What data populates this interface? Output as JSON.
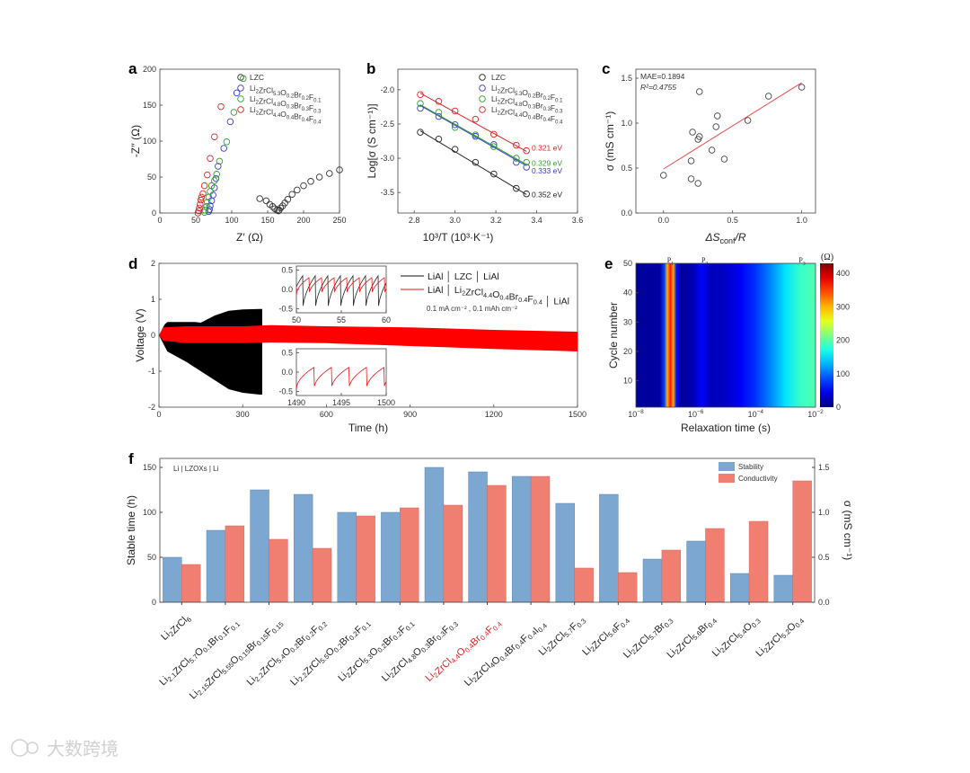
{
  "panels": {
    "a": "a",
    "b": "b",
    "c": "c",
    "d": "d",
    "e": "e",
    "f": "f"
  },
  "watermark": "大数跨境",
  "chart_data": [
    {
      "id": "a",
      "type": "scatter",
      "xlabel": "Z′ (Ω)",
      "ylabel": "-Z′′ (Ω)",
      "xlim": [
        0,
        250
      ],
      "ylim": [
        0,
        200
      ],
      "xticks": [
        0,
        50,
        100,
        150,
        200,
        250
      ],
      "yticks": [
        0,
        50,
        100,
        150,
        200
      ],
      "series": [
        {
          "name": "LZC",
          "color": "#333333",
          "points": [
            [
              139,
              20
            ],
            [
              148,
              17
            ],
            [
              153,
              12
            ],
            [
              157,
              9
            ],
            [
              160,
              6
            ],
            [
              163,
              4
            ],
            [
              165,
              3
            ],
            [
              166,
              4
            ],
            [
              168,
              7
            ],
            [
              171,
              10
            ],
            [
              174,
              14
            ],
            [
              178,
              19
            ],
            [
              184,
              26
            ],
            [
              191,
              32
            ],
            [
              200,
              38
            ],
            [
              210,
              44
            ],
            [
              222,
              50
            ],
            [
              236,
              55
            ],
            [
              250,
              60
            ]
          ]
        },
        {
          "name": "Li2ZrCl5.3O0.2Br0.2F0.1",
          "color": "#3a3ad8",
          "points": [
            [
              68,
              2
            ],
            [
              69,
              5
            ],
            [
              70,
              10
            ],
            [
              72,
              17
            ],
            [
              74,
              25
            ],
            [
              76,
              35
            ],
            [
              78,
              48
            ],
            [
              81,
              65
            ],
            [
              89,
              90
            ],
            [
              98,
              127
            ],
            [
              107,
              167
            ]
          ]
        },
        {
          "name": "Li2ZrCl4.8O0.3Br0.3F0.3",
          "color": "#2e9e2e",
          "points": [
            [
              62,
              1
            ],
            [
              63,
              4
            ],
            [
              65,
              9
            ],
            [
              66,
              15
            ],
            [
              68,
              22
            ],
            [
              70,
              30
            ],
            [
              72,
              38
            ],
            [
              76,
              45
            ],
            [
              79,
              54
            ],
            [
              83,
              72
            ],
            [
              93,
              99
            ],
            [
              103,
              140
            ],
            [
              116,
              187
            ]
          ]
        },
        {
          "name": "Li2ZrCl4.4O0.4Br0.4F0.4",
          "color": "#e02020",
          "points": [
            [
              53,
              0
            ],
            [
              54,
              3
            ],
            [
              55,
              7
            ],
            [
              56,
              12
            ],
            [
              57,
              18
            ],
            [
              58,
              22
            ],
            [
              60,
              27
            ],
            [
              62,
              38
            ],
            [
              66,
              53
            ],
            [
              70,
              76
            ],
            [
              76,
              106
            ],
            [
              85,
              148
            ]
          ]
        }
      ]
    },
    {
      "id": "b",
      "type": "scatter",
      "xlabel": "10³/T (10³·K⁻¹)",
      "ylabel": "Log[σ (S cm⁻¹)]",
      "xlim": [
        2.72,
        3.6
      ],
      "ylim": [
        -3.8,
        -1.7
      ],
      "xticks": [
        2.8,
        3.0,
        3.2,
        3.4,
        3.6
      ],
      "yticks": [
        -3.5,
        -3.0,
        -2.5,
        -2.0
      ],
      "x": [
        2.83,
        2.92,
        3.0,
        3.1,
        3.19,
        3.3,
        3.35
      ],
      "series": [
        {
          "name": "LZC",
          "color": "#222222",
          "values": [
            -2.62,
            -2.72,
            -2.87,
            -3.06,
            -3.23,
            -3.44,
            -3.52
          ],
          "fit": [
            -2.6,
            -3.53
          ],
          "annotation": "0.352 eV"
        },
        {
          "name": "Li2ZrCl5.3O0.2Br0.2F0.1",
          "color": "#3a3ad8",
          "values": [
            -2.27,
            -2.39,
            -2.51,
            -2.68,
            -2.8,
            -3.06,
            -3.13
          ],
          "fit": [
            -2.23,
            -3.11
          ],
          "annotation": "0.333 eV"
        },
        {
          "name": "Li2ZrCl4.8O0.3Br0.3F0.3",
          "color": "#2e9e2e",
          "values": [
            -2.2,
            -2.33,
            -2.55,
            -2.66,
            -2.83,
            -3.0,
            -3.06
          ],
          "fit": [
            -2.22,
            -3.09
          ],
          "annotation": "0.329 eV"
        },
        {
          "name": "Li2ZrCl4.4O0.4Br0.4F0.4",
          "color": "#e02020",
          "values": [
            -2.07,
            -2.17,
            -2.31,
            -2.43,
            -2.65,
            -2.81,
            -2.89
          ],
          "fit": [
            -2.05,
            -2.9
          ],
          "annotation": "0.321 eV"
        }
      ]
    },
    {
      "id": "c",
      "type": "scatter",
      "xlabel_parts": [
        "ΔS",
        "conf",
        "/R"
      ],
      "ylabel": "σ (mS cm⁻¹)",
      "xlim": [
        -0.2,
        1.1
      ],
      "ylim": [
        0,
        1.6
      ],
      "xticks": [
        0.0,
        0.5,
        1.0
      ],
      "yticks": [
        0.0,
        0.5,
        1.0,
        1.5
      ],
      "mae": "MAE=0.1894",
      "r2": "R²=0.4755",
      "points": [
        [
          0,
          0.42
        ],
        [
          0.2,
          0.38
        ],
        [
          0.25,
          0.33
        ],
        [
          0.2,
          0.58
        ],
        [
          0.21,
          0.9
        ],
        [
          0.26,
          0.85
        ],
        [
          0.25,
          0.82
        ],
        [
          0.26,
          1.35
        ],
        [
          0.35,
          0.7
        ],
        [
          0.38,
          0.96
        ],
        [
          0.39,
          1.08
        ],
        [
          0.44,
          0.6
        ],
        [
          0.61,
          1.03
        ],
        [
          0.76,
          1.3
        ],
        [
          1.0,
          1.4
        ]
      ],
      "fit": [
        [
          0,
          0.49
        ],
        [
          1.0,
          1.45
        ]
      ],
      "fit_color": "#e85050"
    },
    {
      "id": "d",
      "type": "area",
      "xlabel": "Time (h)",
      "ylabel": "Voltage (V)",
      "xlim": [
        0,
        1500
      ],
      "ylim": [
        -2,
        2
      ],
      "xticks": [
        0,
        300,
        600,
        900,
        1200,
        1500
      ],
      "yticks": [
        -2,
        -1,
        0,
        1,
        2
      ],
      "legend": [
        {
          "prefix": "LiAl │ ",
          "formula": "LZC",
          "suffix": " │ LiAl",
          "color": "#111111"
        },
        {
          "prefix": "LiAl │ ",
          "formula": "Li2ZrCl4.4O0.4Br0.4F0.4",
          "suffix": " │ LiAl",
          "color": "#ee1111"
        }
      ],
      "condition": "0.1 mA cm⁻² , 0.1 mAh cm⁻²",
      "black_envelope": {
        "t": [
          0,
          20,
          30,
          100,
          130,
          150,
          200,
          250,
          300,
          360,
          370
        ],
        "upper": [
          0,
          0.3,
          0.37,
          0.37,
          0.37,
          0.35,
          0.55,
          0.68,
          0.72,
          0.73,
          0.73
        ],
        "lower": [
          0,
          -0.3,
          -0.45,
          -0.75,
          -0.9,
          -1.0,
          -1.25,
          -1.5,
          -1.6,
          -1.65,
          -1.65
        ]
      },
      "red_envelope": {
        "t": [
          0,
          15,
          100,
          300,
          400,
          600,
          900,
          1200,
          1500
        ],
        "upper": [
          0,
          0.22,
          0.25,
          0.25,
          0.28,
          0.25,
          0.22,
          0.15,
          0.1
        ],
        "lower": [
          0,
          -0.15,
          -0.22,
          -0.22,
          -0.2,
          -0.22,
          -0.3,
          -0.38,
          -0.45
        ]
      },
      "insets": [
        {
          "xlim": [
            50,
            60
          ],
          "ylim": [
            -0.6,
            0.6
          ],
          "xticks": [
            50,
            55,
            60
          ],
          "yticks": [
            -0.5,
            0.0,
            0.5
          ],
          "series": [
            {
              "color": "#222222",
              "period": 1.4,
              "phase": 0.7,
              "high": 0.35,
              "low": -0.6
            },
            {
              "color": "#ee1111",
              "period": 1.4,
              "phase": 0,
              "high": 0.3,
              "low": -0.15
            }
          ]
        },
        {
          "xlim": [
            1490,
            1500
          ],
          "ylim": [
            -0.6,
            0.6
          ],
          "xticks": [
            1490,
            1495,
            1500
          ],
          "yticks": [
            -0.5,
            0.0,
            0.5
          ],
          "series": [
            {
              "color": "#ee1111",
              "period": 1.95,
              "phase": 0,
              "high": 0.12,
              "low": -0.45
            }
          ]
        }
      ]
    },
    {
      "id": "e",
      "type": "heatmap",
      "xlabel": "Relaxation time (s)",
      "ylabel": "Cycle number",
      "xlim_log10": [
        -8,
        -2
      ],
      "ylim": [
        1,
        50
      ],
      "xticks_log10": [
        -8,
        -6,
        -4,
        -2
      ],
      "yticks": [
        10,
        20,
        30,
        40,
        50
      ],
      "peaks": [
        {
          "label": "P1",
          "log10": -6.85
        },
        {
          "label": "P2",
          "log10": -5.7
        },
        {
          "label": "P3",
          "log10": -2.45
        }
      ],
      "colorbar": {
        "label": "(Ω)",
        "range": [
          0,
          430
        ],
        "ticks": [
          0,
          100,
          200,
          300,
          400
        ]
      },
      "profile": [
        [
          -8,
          10
        ],
        [
          -7.2,
          15
        ],
        [
          -7.05,
          80
        ],
        [
          -6.95,
          300
        ],
        [
          -6.85,
          370
        ],
        [
          -6.75,
          300
        ],
        [
          -6.65,
          60
        ],
        [
          -6.5,
          12
        ],
        [
          -6.1,
          20
        ],
        [
          -5.8,
          55
        ],
        [
          -5.5,
          25
        ],
        [
          -5.0,
          30
        ],
        [
          -4.5,
          50
        ],
        [
          -4.0,
          75
        ],
        [
          -3.5,
          110
        ],
        [
          -3.0,
          150
        ],
        [
          -2.5,
          185
        ],
        [
          -2.0,
          195
        ]
      ]
    },
    {
      "id": "f",
      "type": "bar",
      "annotation": "Li | LZOXs | Li",
      "ylabel": "Stable time (h)",
      "y2label": "σ (mS cm⁻¹)",
      "ylim": [
        0,
        160
      ],
      "y2lim": [
        0,
        1.6
      ],
      "yticks": [
        0,
        50,
        100,
        150
      ],
      "y2ticks": [
        0.0,
        0.5,
        1.0,
        1.5
      ],
      "highlight_index": 7,
      "highlight_color": "#e02020",
      "categories": [
        "Li2ZrCl6",
        "Li2.1ZrCl5.7O0.1Br0.1F0.1",
        "Li2.15ZrCl5.55O0.15Br0.15F0.15",
        "Li2.2ZrCl5.4O0.2Br0.2F0.2",
        "Li2.2ZrCl5.5O0.2Br0.2F0.1",
        "Li2ZrCl5.3O0.2Br0.2F0.1",
        "Li2ZrCl4.8O0.3Br0.3F0.3",
        "Li2ZrCl4.4O0.4Br0.4F0.4",
        "Li2ZrCl4O0.4Br0.4F0.4I0.4",
        "Li2ZrCl5.7F0.3",
        "Li2ZrCl5.6F0.4",
        "Li2ZrCl5.7Br0.3",
        "Li2ZrCl5.6Br0.4",
        "Li2ZrCl5.4O0.3",
        "Li2ZrCl5.2O0.4"
      ],
      "series": [
        {
          "name": "Stability",
          "axis": "left",
          "color": "#7ba7d0",
          "values": [
            50,
            80,
            125,
            120,
            100,
            100,
            150,
            145,
            140,
            110,
            120,
            48,
            68,
            32,
            30
          ]
        },
        {
          "name": "Conductivity",
          "axis": "right",
          "color": "#f07f72",
          "values": [
            0.42,
            0.85,
            0.7,
            0.6,
            0.96,
            1.05,
            1.08,
            1.3,
            1.4,
            0.38,
            0.33,
            0.58,
            0.82,
            0.9,
            1.35
          ]
        }
      ]
    }
  ]
}
